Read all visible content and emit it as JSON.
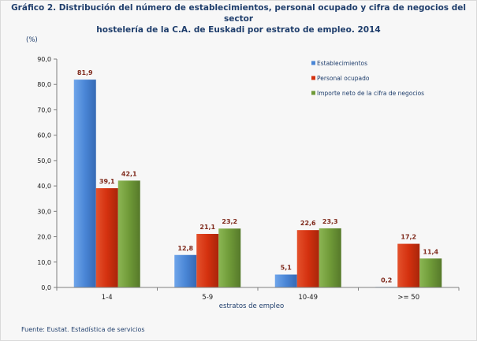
{
  "chart_data": {
    "type": "bar",
    "title_line1": "Gráfico 2. Distribución del número de establecimientos, personal ocupado y cifra de negocios del sector",
    "title_line2": "hostelería de la C.A. de Euskadi por estrato de empleo. 2014",
    "ylabel": "(%)",
    "xlabel": "estratos de empleo",
    "ylim": [
      0,
      90
    ],
    "y_ticks": [
      "0,0",
      "10,0",
      "20,0",
      "30,0",
      "40,0",
      "50,0",
      "60,0",
      "70,0",
      "80,0",
      "90,0"
    ],
    "categories": [
      "1-4",
      "5-9",
      "10-49",
      ">= 50"
    ],
    "series": [
      {
        "name": "Establecimientos",
        "color": "#4a86d6",
        "values": [
          81.9,
          12.8,
          5.1,
          0.2
        ],
        "labels": [
          "81,9",
          "12,8",
          "5,1",
          "0,2"
        ]
      },
      {
        "name": "Personal ocupado",
        "color": "#d4310f",
        "values": [
          39.1,
          21.1,
          22.6,
          17.2
        ],
        "labels": [
          "39,1",
          "21,1",
          "22,6",
          "17,2"
        ]
      },
      {
        "name": "Importe neto de la cifra de negocios",
        "color": "#6f9a38",
        "values": [
          42.1,
          23.2,
          23.3,
          11.4
        ],
        "labels": [
          "42,1",
          "23,2",
          "23,3",
          "11,4"
        ]
      }
    ],
    "legend_position": "top-right",
    "grid": false
  },
  "source": "Fuente: Eustat. Estadística de servicios"
}
